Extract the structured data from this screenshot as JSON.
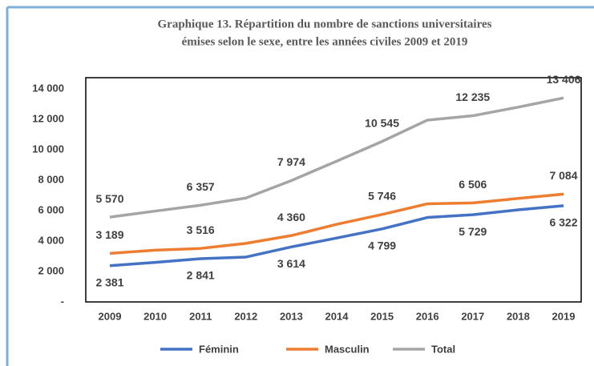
{
  "chart_data": {
    "type": "line",
    "title": [
      "Graphique  13. Répartition du nombre de sanctions universitaires",
      "émises selon le sexe, entre les années civiles 2009 et 2019"
    ],
    "categories": [
      "2009",
      "2010",
      "2011",
      "2012",
      "2013",
      "2014",
      "2015",
      "2016",
      "2017",
      "2018",
      "2019"
    ],
    "series": [
      {
        "name": "Féminin",
        "color": "#4472c4",
        "label_position": "below",
        "values": [
          2381,
          2600,
          2841,
          2950,
          3614,
          4200,
          4799,
          5550,
          5729,
          6050,
          6322
        ],
        "value_labels": [
          "2 381",
          null,
          "2 841",
          null,
          "3 614",
          null,
          "4 799",
          null,
          "5 729",
          null,
          "6 322"
        ]
      },
      {
        "name": "Masculin",
        "color": "#ed7d31",
        "label_position": "above",
        "values": [
          3189,
          3400,
          3516,
          3850,
          4360,
          5100,
          5746,
          6450,
          6506,
          6800,
          7084
        ],
        "value_labels": [
          "3 189",
          null,
          "3 516",
          null,
          "4 360",
          null,
          "5 746",
          null,
          "6 506",
          null,
          "7 084"
        ]
      },
      {
        "name": "Total",
        "color": "#a5a5a5",
        "label_position": "above",
        "values": [
          5570,
          5970,
          6357,
          6830,
          7974,
          9250,
          10545,
          11950,
          12235,
          12800,
          13406
        ],
        "value_labels": [
          "5 570",
          null,
          "6 357",
          null,
          "7 974",
          null,
          "10 545",
          null,
          "12 235",
          null,
          "13 406"
        ]
      }
    ],
    "ylim": [
      0,
      14000
    ],
    "yticks": [
      {
        "value": 0,
        "label": "-"
      },
      {
        "value": 2000,
        "label": "2 000"
      },
      {
        "value": 4000,
        "label": "4 000"
      },
      {
        "value": 6000,
        "label": "6 000"
      },
      {
        "value": 8000,
        "label": "8 000"
      },
      {
        "value": 10000,
        "label": "10 000"
      },
      {
        "value": 12000,
        "label": "12 000"
      },
      {
        "value": 14000,
        "label": "14 000"
      }
    ],
    "legend": "bottom"
  }
}
